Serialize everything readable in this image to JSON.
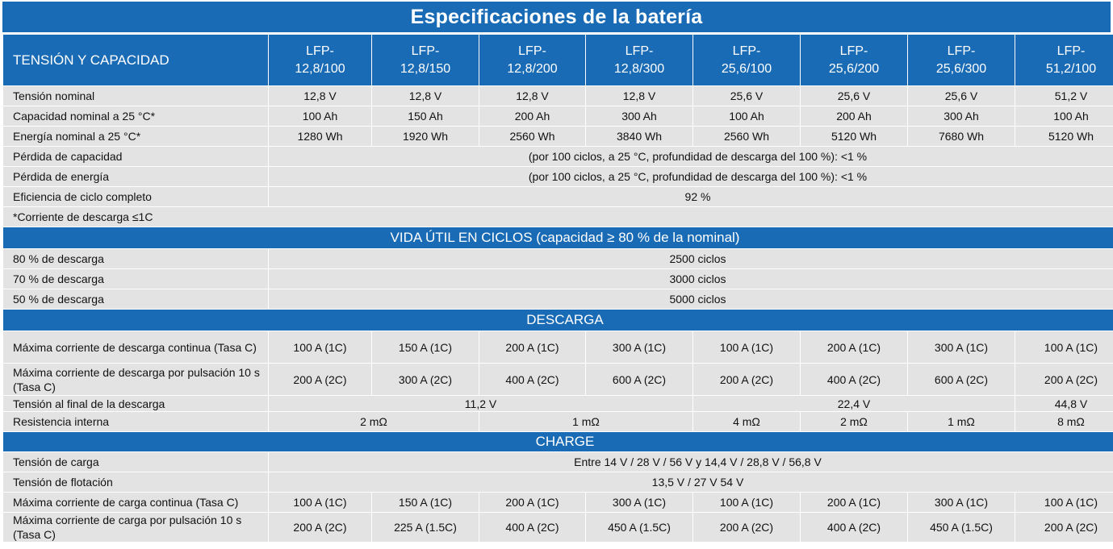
{
  "title": "Especificaciones de la batería",
  "header": {
    "label": "TENSIÓN Y CAPACIDAD",
    "models": [
      [
        "LFP-",
        "12,8/100"
      ],
      [
        "LFP-",
        "12,8/150"
      ],
      [
        "LFP-",
        "12,8/200"
      ],
      [
        "LFP-",
        "12,8/300"
      ],
      [
        "LFP-",
        "25,6/100"
      ],
      [
        "LFP-",
        "25,6/200"
      ],
      [
        "LFP-",
        "25,6/300"
      ],
      [
        "LFP-",
        "51,2/100"
      ]
    ]
  },
  "voltage_capacity": {
    "nominal_voltage": {
      "label": "Tensión nominal",
      "values": [
        "12,8 V",
        "12,8 V",
        "12,8 V",
        "12,8 V",
        "25,6 V",
        "25,6 V",
        "25,6 V",
        "51,2 V"
      ]
    },
    "nominal_capacity": {
      "label": "Capacidad nominal a 25 °C*",
      "values": [
        "100 Ah",
        "150 Ah",
        "200 Ah",
        "300 Ah",
        "100 Ah",
        "200 Ah",
        "300 Ah",
        "100 Ah"
      ]
    },
    "nominal_energy": {
      "label": "Energía nominal a 25 °C*",
      "values": [
        "1280 Wh",
        "1920 Wh",
        "2560 Wh",
        "3840 Wh",
        "2560 Wh",
        "5120 Wh",
        "7680 Wh",
        "5120 Wh"
      ]
    },
    "capacity_loss": {
      "label": "Pérdida de capacidad",
      "value": "(por 100 ciclos, a 25 °C, profundidad de descarga del 100 %): <1 %"
    },
    "energy_loss": {
      "label": "Pérdida de energía",
      "value": "(por 100 ciclos, a 25 °C, profundidad de descarga del 100 %): <1 %"
    },
    "round_trip_eff": {
      "label": "Eficiencia de ciclo completo",
      "value": "92 %"
    },
    "footnote": "*Corriente de descarga ≤1C"
  },
  "cycle_life": {
    "title": "VIDA ÚTIL EN CICLOS (capacidad ≥ 80 % de la nominal)",
    "rows": [
      {
        "label": "80 % de descarga",
        "value": "2500 ciclos"
      },
      {
        "label": "70 % de descarga",
        "value": "3000 ciclos"
      },
      {
        "label": "50 % de descarga",
        "value": "5000 ciclos"
      }
    ]
  },
  "discharge": {
    "title": "DESCARGA",
    "max_continuous": {
      "label": "Máxima corriente de descarga continua (Tasa C)",
      "values": [
        "100 A (1C)",
        "150 A (1C)",
        "200 A (1C)",
        "300 A (1C)",
        "100 A (1C)",
        "200 A (1C)",
        "300 A (1C)",
        "100 A (1C)"
      ]
    },
    "max_pulse": {
      "label": "Máxima corriente de descarga por pulsación 10 s (Tasa C)",
      "values": [
        "200 A (2C)",
        "300 A (2C)",
        "400 A (2C)",
        "600 A (2C)",
        "200 A (2C)",
        "400 A (2C)",
        "600 A (2C)",
        "200 A (2C)"
      ]
    },
    "end_voltage": {
      "label": "Tensión al final de la descarga",
      "values": [
        "11,2 V",
        "22,4 V",
        "44,8 V"
      ]
    },
    "internal_resistance": {
      "label": "Resistencia interna",
      "values": [
        "2 mΩ",
        "1 mΩ",
        "4 mΩ",
        "2 mΩ",
        "1 mΩ",
        "8 mΩ"
      ]
    }
  },
  "charge": {
    "title": "CHARGE",
    "charge_voltage": {
      "label": "Tensión de carga",
      "value": "Entre 14 V / 28 V / 56 V y 14,4 V / 28,8 V / 56,8 V"
    },
    "float_voltage": {
      "label": "Tensión de flotación",
      "value": "13,5 V / 27 V 54 V"
    },
    "max_continuous": {
      "label": "Máxima corriente de carga continua (Tasa C)",
      "values": [
        "100 A (1C)",
        "150 A (1C)",
        "200 A (1C)",
        "300 A (1C)",
        "100 A (1C)",
        "200 A (1C)",
        "300 A (1C)",
        "100 A (1C)"
      ]
    },
    "max_pulse": {
      "label": "Máxima corriente de carga por pulsación 10 s (Tasa C)",
      "values": [
        "200 A (2C)",
        "225 A (1.5C)",
        "400 A (2C)",
        "450 A (1.5C)",
        "200 A (2C)",
        "400 A (2C)",
        "450 A (1.5C)",
        "200 A (2C)"
      ]
    }
  }
}
